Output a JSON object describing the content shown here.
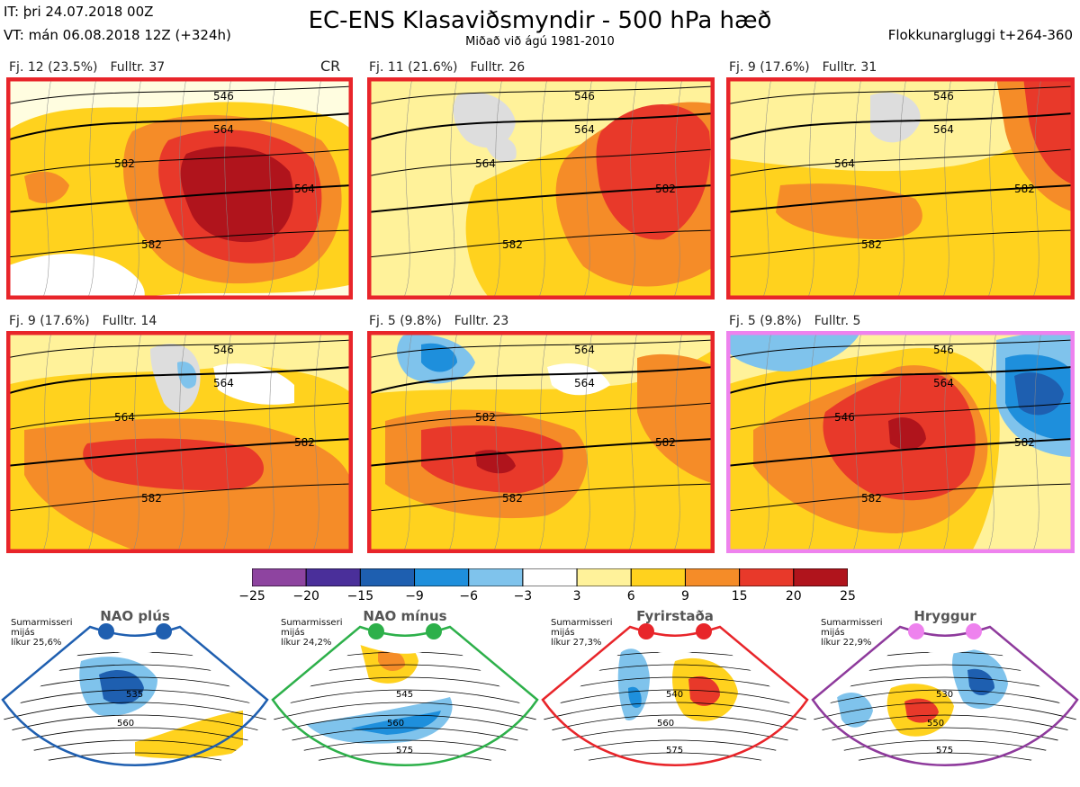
{
  "header": {
    "issue_time": "IT: þri 24.07.2018 00Z",
    "valid_time": "VT: mán 06.08.2018 12Z  (+324h)",
    "title": "EC-ENS Klasaviðsmyndir - 500 hPa hæð",
    "subtitle": "Miðað við ágú 1981-2010",
    "window": "Flokkunargluggi t+264-360"
  },
  "panels": [
    {
      "cluster": "Fj. 12 (23.5%)",
      "members": "Fulltr. 37",
      "tag": "CR",
      "border": "#e8252a",
      "contours": [
        "546",
        "564",
        "582",
        "564",
        "582"
      ]
    },
    {
      "cluster": "Fj. 11 (21.6%)",
      "members": "Fulltr. 26",
      "tag": "",
      "border": "#e8252a",
      "contours": [
        "546",
        "564",
        "564",
        "582",
        "582"
      ]
    },
    {
      "cluster": "Fj. 9 (17.6%)",
      "members": "Fulltr. 31",
      "tag": "",
      "border": "#e8252a",
      "contours": [
        "546",
        "564",
        "564",
        "582",
        "582"
      ]
    },
    {
      "cluster": "Fj. 9 (17.6%)",
      "members": "Fulltr. 14",
      "tag": "",
      "border": "#e8252a",
      "contours": [
        "546",
        "564",
        "564",
        "582",
        "582"
      ]
    },
    {
      "cluster": "Fj. 5 (9.8%)",
      "members": "Fulltr. 23",
      "tag": "",
      "border": "#e8252a",
      "contours": [
        "564",
        "564",
        "582",
        "582",
        "582"
      ]
    },
    {
      "cluster": "Fj. 5 (9.8%)",
      "members": "Fulltr. 5",
      "tag": "",
      "border": "#ee82ee",
      "contours": [
        "546",
        "564",
        "546",
        "582",
        "582"
      ]
    }
  ],
  "colorbar": {
    "ticks": [
      "−25",
      "−20",
      "−15",
      "−9",
      "−6",
      "−3",
      "3",
      "6",
      "9",
      "15",
      "20",
      "25"
    ],
    "colors": [
      "#8e44a0",
      "#4a2f9a",
      "#1e5fb0",
      "#1e8fdc",
      "#7fc3ec",
      "#ffffff",
      "#fff29a",
      "#ffd21e",
      "#f58c28",
      "#e8392a",
      "#b0141c"
    ]
  },
  "regimes": [
    {
      "name": "NAO plús",
      "season": "Sumarmisseri",
      "line2": "mijás",
      "line3": "líkur 25,6%",
      "color": "#1f5fb0",
      "dot": "#1f5fb0",
      "contours": [
        "535",
        "560"
      ]
    },
    {
      "name": "NAO mínus",
      "season": "Sumarmisseri",
      "line2": "mijás",
      "line3": "líkur 24,2%",
      "color": "#2db04a",
      "dot": "#2db04a",
      "contours": [
        "545",
        "560",
        "575"
      ]
    },
    {
      "name": "Fyrirstaða",
      "season": "Sumarmisseri",
      "line2": "mijás",
      "line3": "líkur 27,3%",
      "color": "#e8252a",
      "dot": "#e8252a",
      "contours": [
        "540",
        "560",
        "575"
      ]
    },
    {
      "name": "Hryggur",
      "season": "Sumarmisseri",
      "line2": "mijás",
      "line3": "líkur 22,9%",
      "color": "#8e3a9c",
      "dot": "#ee82ee",
      "contours": [
        "530",
        "550",
        "575"
      ]
    }
  ],
  "chart_data": {
    "type": "heatmap",
    "title": "EC-ENS Klasaviðsmyndir - 500 hPa hæð",
    "subtitle": "Miðað við ágú 1981-2010",
    "colorbar_ticks": [
      -25,
      -20,
      -15,
      -9,
      -6,
      -3,
      3,
      6,
      9,
      15,
      20,
      25
    ],
    "clusters": [
      {
        "label": "Fj. 12",
        "probability_pct": 23.5,
        "representative": 37
      },
      {
        "label": "Fj. 11",
        "probability_pct": 21.6,
        "representative": 26
      },
      {
        "label": "Fj. 9",
        "probability_pct": 17.6,
        "representative": 31
      },
      {
        "label": "Fj. 9",
        "probability_pct": 17.6,
        "representative": 14
      },
      {
        "label": "Fj. 5",
        "probability_pct": 9.8,
        "representative": 23
      },
      {
        "label": "Fj. 5",
        "probability_pct": 9.8,
        "representative": 5
      }
    ],
    "regimes": [
      {
        "name": "NAO plús",
        "probability_pct": 25.6
      },
      {
        "name": "NAO mínus",
        "probability_pct": 24.2
      },
      {
        "name": "Fyrirstaða",
        "probability_pct": 27.3
      },
      {
        "name": "Hryggur",
        "probability_pct": 22.9
      }
    ]
  }
}
